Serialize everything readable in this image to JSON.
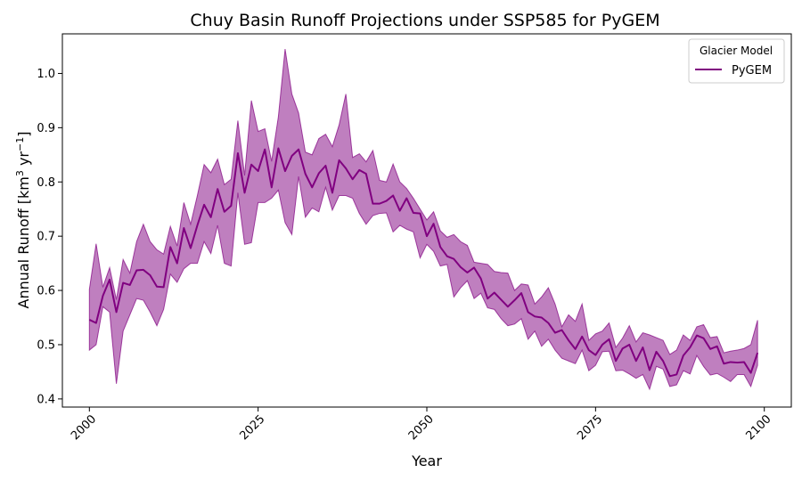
{
  "chart_data": {
    "type": "line",
    "title": "Chuy Basin Runoff Projections under SSP585 for PyGEM",
    "xlabel": "Year",
    "ylabel_main": "Annual Runoff [km",
    "ylabel_sup1": "3",
    "ylabel_mid": " yr",
    "ylabel_sup2": "−1",
    "ylabel_end": "]",
    "xlim": [
      1996,
      2104
    ],
    "ylim": [
      0.385,
      1.073
    ],
    "x_ticks": [
      2000,
      2025,
      2050,
      2075,
      2100
    ],
    "y_ticks": [
      0.4,
      0.5,
      0.6,
      0.7,
      0.8,
      0.9,
      1.0
    ],
    "y_tick_labels": [
      "0.4",
      "0.5",
      "0.6",
      "0.7",
      "0.8",
      "0.9",
      "1.0"
    ],
    "legend": {
      "title": "Glacier Model",
      "placement": "top-right"
    },
    "series": [
      {
        "name": "PyGEM",
        "color": "#800080",
        "band_color": "#800080",
        "x": [
          2000,
          2001,
          2002,
          2003,
          2004,
          2005,
          2006,
          2007,
          2008,
          2009,
          2010,
          2011,
          2012,
          2013,
          2014,
          2015,
          2016,
          2017,
          2018,
          2019,
          2020,
          2021,
          2022,
          2023,
          2024,
          2025,
          2026,
          2027,
          2028,
          2029,
          2030,
          2031,
          2032,
          2033,
          2034,
          2035,
          2036,
          2037,
          2038,
          2039,
          2040,
          2041,
          2042,
          2043,
          2044,
          2045,
          2046,
          2047,
          2048,
          2049,
          2050,
          2051,
          2052,
          2053,
          2054,
          2055,
          2056,
          2057,
          2058,
          2059,
          2060,
          2061,
          2062,
          2063,
          2064,
          2065,
          2066,
          2067,
          2068,
          2069,
          2070,
          2071,
          2072,
          2073,
          2074,
          2075,
          2076,
          2077,
          2078,
          2079,
          2080,
          2081,
          2082,
          2083,
          2084,
          2085,
          2086,
          2087,
          2088,
          2089,
          2090,
          2091,
          2092,
          2093,
          2094,
          2095,
          2096,
          2097,
          2098,
          2099
        ],
        "values": [
          0.546,
          0.54,
          0.59,
          0.62,
          0.56,
          0.614,
          0.61,
          0.637,
          0.638,
          0.628,
          0.607,
          0.606,
          0.68,
          0.65,
          0.715,
          0.678,
          0.72,
          0.758,
          0.735,
          0.787,
          0.745,
          0.756,
          0.853,
          0.78,
          0.832,
          0.82,
          0.86,
          0.79,
          0.862,
          0.82,
          0.848,
          0.86,
          0.815,
          0.79,
          0.816,
          0.83,
          0.78,
          0.84,
          0.825,
          0.805,
          0.822,
          0.815,
          0.76,
          0.76,
          0.765,
          0.775,
          0.747,
          0.77,
          0.743,
          0.742,
          0.7,
          0.723,
          0.68,
          0.663,
          0.658,
          0.643,
          0.633,
          0.642,
          0.622,
          0.585,
          0.596,
          0.583,
          0.57,
          0.582,
          0.595,
          0.56,
          0.552,
          0.55,
          0.54,
          0.522,
          0.527,
          0.508,
          0.492,
          0.515,
          0.49,
          0.481,
          0.5,
          0.51,
          0.47,
          0.493,
          0.5,
          0.47,
          0.495,
          0.453,
          0.487,
          0.47,
          0.442,
          0.445,
          0.48,
          0.495,
          0.517,
          0.512,
          0.492,
          0.497,
          0.465,
          0.468,
          0.467,
          0.468,
          0.448,
          0.485
        ],
        "lower": [
          0.49,
          0.5,
          0.57,
          0.56,
          0.428,
          0.525,
          0.555,
          0.585,
          0.582,
          0.56,
          0.535,
          0.565,
          0.63,
          0.615,
          0.64,
          0.65,
          0.65,
          0.69,
          0.668,
          0.72,
          0.65,
          0.645,
          0.78,
          0.685,
          0.688,
          0.762,
          0.762,
          0.77,
          0.785,
          0.725,
          0.703,
          0.81,
          0.735,
          0.752,
          0.745,
          0.79,
          0.748,
          0.775,
          0.775,
          0.77,
          0.742,
          0.722,
          0.738,
          0.742,
          0.743,
          0.708,
          0.72,
          0.713,
          0.708,
          0.66,
          0.685,
          0.672,
          0.645,
          0.648,
          0.588,
          0.605,
          0.618,
          0.585,
          0.595,
          0.568,
          0.565,
          0.548,
          0.535,
          0.538,
          0.548,
          0.51,
          0.525,
          0.497,
          0.51,
          0.49,
          0.475,
          0.47,
          0.465,
          0.49,
          0.452,
          0.462,
          0.487,
          0.488,
          0.452,
          0.453,
          0.446,
          0.438,
          0.445,
          0.418,
          0.46,
          0.455,
          0.423,
          0.426,
          0.452,
          0.446,
          0.48,
          0.46,
          0.444,
          0.447,
          0.44,
          0.432,
          0.445,
          0.445,
          0.423,
          0.462
        ],
        "upper": [
          0.602,
          0.686,
          0.606,
          0.642,
          0.583,
          0.657,
          0.632,
          0.69,
          0.722,
          0.69,
          0.675,
          0.667,
          0.718,
          0.682,
          0.762,
          0.722,
          0.775,
          0.832,
          0.817,
          0.842,
          0.795,
          0.805,
          0.913,
          0.812,
          0.95,
          0.893,
          0.898,
          0.838,
          0.92,
          1.045,
          0.962,
          0.927,
          0.855,
          0.85,
          0.88,
          0.888,
          0.865,
          0.905,
          0.962,
          0.845,
          0.852,
          0.837,
          0.858,
          0.803,
          0.8,
          0.833,
          0.8,
          0.788,
          0.77,
          0.75,
          0.73,
          0.745,
          0.71,
          0.698,
          0.703,
          0.69,
          0.683,
          0.652,
          0.65,
          0.648,
          0.635,
          0.633,
          0.632,
          0.6,
          0.612,
          0.61,
          0.575,
          0.588,
          0.605,
          0.575,
          0.533,
          0.555,
          0.543,
          0.575,
          0.508,
          0.52,
          0.525,
          0.54,
          0.495,
          0.512,
          0.535,
          0.505,
          0.522,
          0.518,
          0.513,
          0.508,
          0.482,
          0.49,
          0.518,
          0.508,
          0.533,
          0.537,
          0.513,
          0.515,
          0.485,
          0.488,
          0.49,
          0.493,
          0.5,
          0.545
        ]
      }
    ]
  }
}
